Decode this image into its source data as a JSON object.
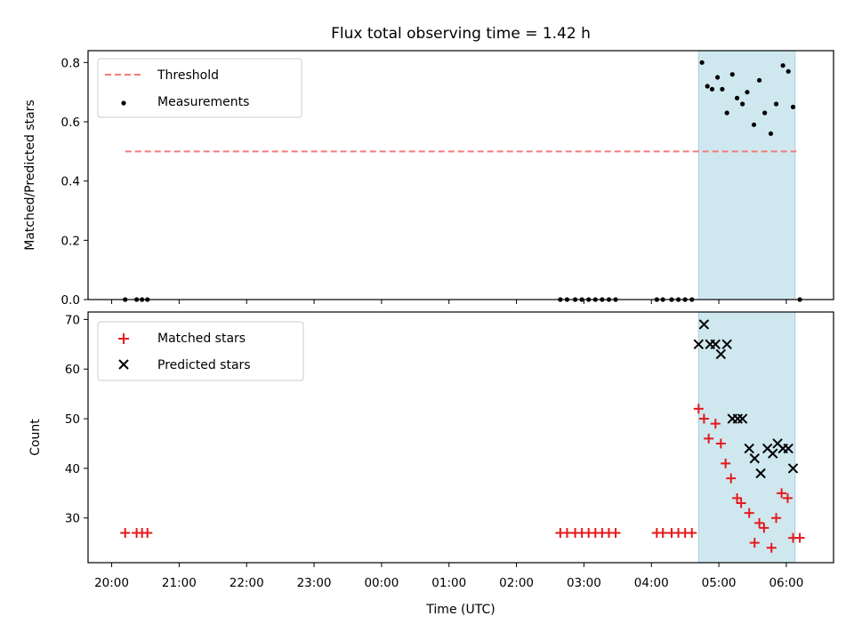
{
  "colors": {
    "threshold": "#f47b7b",
    "measurement": "#000000",
    "matched": "#e41a1c",
    "predicted": "#000000",
    "span_fill": "#cfe8ef",
    "span_edge": "#a8d0dc"
  },
  "chart_data": [
    {
      "type": "scatter",
      "title": "Flux total observing time = 1.42 h",
      "xlabel": "",
      "ylabel": "Matched/Predicted stars",
      "ylim": [
        0,
        0.84
      ],
      "yticks": [
        "0.0",
        "0.2",
        "0.4",
        "0.6",
        "0.8"
      ],
      "grid": false,
      "legend": "top-left",
      "xtick_values": [
        20,
        21,
        22,
        23,
        24,
        25,
        26,
        27,
        28,
        29,
        30
      ],
      "xlim_hours": [
        19.65,
        30.7
      ],
      "highlight_span_hours": [
        28.7,
        30.13
      ],
      "series": [
        {
          "name": "Threshold",
          "kind": "dashed-line",
          "x_hours": [
            20.2,
            30.15
          ],
          "values": [
            0.5,
            0.5
          ]
        },
        {
          "name": "Measurements",
          "kind": "points",
          "x_hours": [
            20.2,
            20.37,
            20.45,
            20.53,
            26.65,
            26.75,
            26.87,
            26.97,
            27.07,
            27.17,
            27.27,
            27.37,
            27.47,
            28.08,
            28.17,
            28.3,
            28.4,
            28.5,
            28.6,
            28.75,
            28.83,
            28.9,
            28.98,
            29.05,
            29.12,
            29.2,
            29.27,
            29.35,
            29.42,
            29.52,
            29.6,
            29.68,
            29.77,
            29.85,
            29.95,
            30.03,
            30.1,
            30.2
          ],
          "values": [
            0,
            0,
            0,
            0,
            0,
            0,
            0,
            0,
            0,
            0,
            0,
            0,
            0,
            0,
            0,
            0,
            0,
            0,
            0,
            0.8,
            0.72,
            0.71,
            0.75,
            0.71,
            0.63,
            0.76,
            0.68,
            0.66,
            0.7,
            0.59,
            0.74,
            0.63,
            0.56,
            0.66,
            0.79,
            0.77,
            0.65,
            0
          ]
        }
      ]
    },
    {
      "type": "scatter",
      "title": "",
      "xlabel": "Time (UTC)",
      "ylabel": "Count",
      "ylim": [
        21,
        71.5
      ],
      "yticks": [
        "30",
        "40",
        "50",
        "60",
        "70"
      ],
      "grid": false,
      "legend": "top-left",
      "categories": [
        "20:00",
        "21:00",
        "22:00",
        "23:00",
        "00:00",
        "01:00",
        "02:00",
        "03:00",
        "04:00",
        "05:00",
        "06:00"
      ],
      "xtick_values": [
        20,
        21,
        22,
        23,
        24,
        25,
        26,
        27,
        28,
        29,
        30
      ],
      "xlim_hours": [
        19.65,
        30.7
      ],
      "highlight_span_hours": [
        28.7,
        30.13
      ],
      "series": [
        {
          "name": "Matched stars",
          "marker": "plus",
          "x_hours": [
            20.2,
            20.37,
            20.45,
            20.53,
            26.65,
            26.75,
            26.87,
            26.97,
            27.07,
            27.17,
            27.27,
            27.37,
            27.47,
            28.08,
            28.17,
            28.3,
            28.4,
            28.5,
            28.6,
            28.7,
            28.78,
            28.85,
            28.95,
            29.03,
            29.1,
            29.18,
            29.27,
            29.33,
            29.45,
            29.53,
            29.6,
            29.67,
            29.78,
            29.85,
            29.93,
            30.02,
            30.1,
            30.2
          ],
          "values": [
            27,
            27,
            27,
            27,
            27,
            27,
            27,
            27,
            27,
            27,
            27,
            27,
            27,
            27,
            27,
            27,
            27,
            27,
            27,
            52,
            50,
            46,
            49,
            45,
            41,
            38,
            34,
            33,
            31,
            25,
            29,
            28,
            24,
            30,
            35,
            34,
            26,
            26
          ]
        },
        {
          "name": "Predicted stars",
          "marker": "x",
          "x_hours": [
            28.7,
            28.78,
            28.87,
            28.95,
            29.03,
            29.12,
            29.2,
            29.28,
            29.35,
            29.45,
            29.53,
            29.62,
            29.72,
            29.8,
            29.87,
            29.95,
            30.03,
            30.1
          ],
          "values": [
            65,
            69,
            65,
            65,
            63,
            65,
            50,
            50,
            50,
            44,
            42,
            39,
            44,
            43,
            45,
            44,
            44,
            40
          ]
        }
      ]
    }
  ]
}
